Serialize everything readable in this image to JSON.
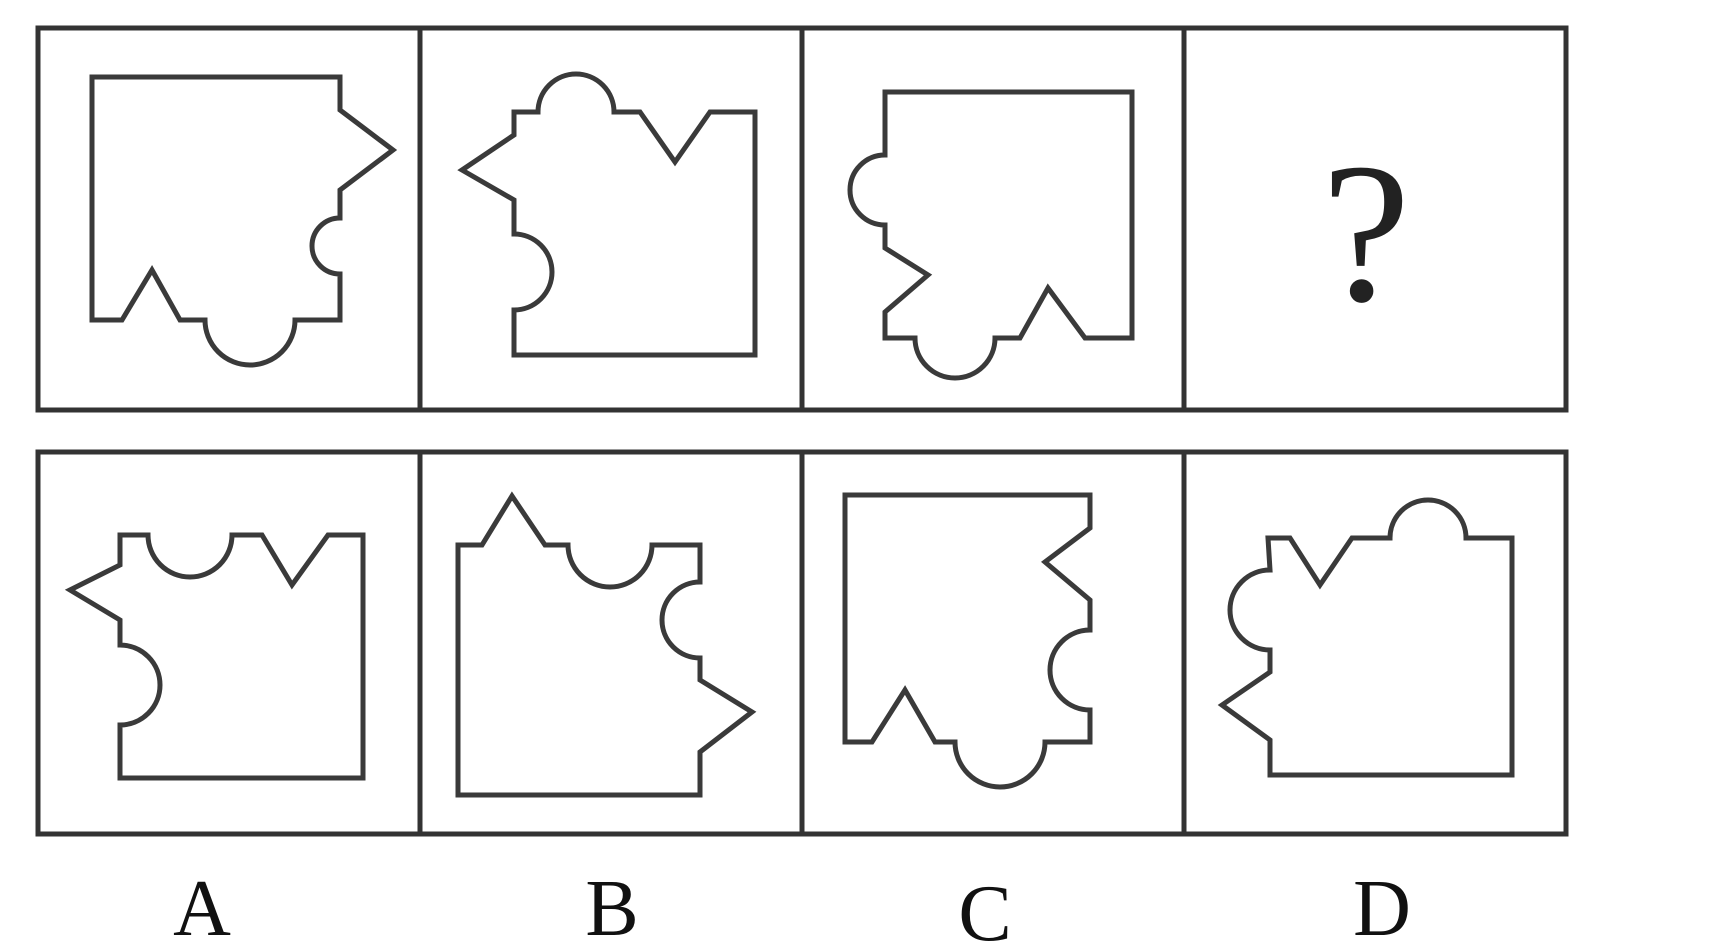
{
  "question": {
    "placeholder_mark": "?"
  },
  "options": [
    {
      "label": "A"
    },
    {
      "label": "B"
    },
    {
      "label": "C"
    },
    {
      "label": "D"
    }
  ],
  "colors": {
    "border": "#333333",
    "shape": "#3a3a3a",
    "background": "#ffffff"
  }
}
